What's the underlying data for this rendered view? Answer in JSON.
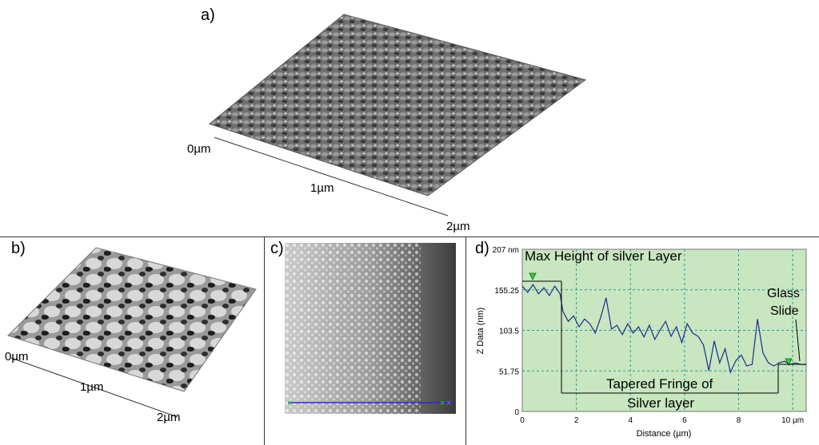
{
  "panels": {
    "a": {
      "label": "a)",
      "axis_ticks": [
        "0µm",
        "1µm",
        "2µm"
      ]
    },
    "b": {
      "label": "b)",
      "axis_ticks": [
        "0µm",
        "1µm",
        "2µm"
      ]
    },
    "c": {
      "label": "c)"
    },
    "d": {
      "label": "d)"
    }
  },
  "chart_data": {
    "type": "line",
    "title": "",
    "xlabel": "Distance (µm)",
    "ylabel": "Z Data (nm)",
    "xlim": [
      0,
      10.5
    ],
    "ylim": [
      0,
      207
    ],
    "x_ticks": [
      "0",
      "2",
      "4",
      "6",
      "8",
      "10 µm"
    ],
    "y_ticks": [
      "0",
      "51.75",
      "103.5",
      "155.25",
      "207 nm"
    ],
    "background_color": "#c8e6c0",
    "line_color": "#1f2a8c",
    "grid": "dashed",
    "annotations": {
      "max_height": "Max Height of silver Layer",
      "glass_line1": "Glass",
      "glass_line2": "Slide",
      "fringe_line1": "Tapered Fringe of",
      "fringe_line2": "Silver layer"
    },
    "series": [
      {
        "x": [
          0,
          0.2,
          0.4,
          0.6,
          0.8,
          1.0,
          1.2,
          1.4,
          1.5,
          1.7,
          1.9,
          2.1,
          2.3,
          2.5,
          2.7,
          2.9,
          3.1,
          3.3,
          3.5,
          3.7,
          3.9,
          4.1,
          4.3,
          4.5,
          4.7,
          4.9,
          5.1,
          5.3,
          5.5,
          5.7,
          5.9,
          6.1,
          6.3,
          6.5,
          6.7,
          6.9,
          7.1,
          7.3,
          7.5,
          7.7,
          7.9,
          8.1,
          8.3,
          8.5,
          8.7,
          8.9,
          9.1,
          9.3,
          9.5,
          9.7,
          9.9,
          10.1,
          10.3,
          10.5
        ],
        "y": [
          160,
          152,
          162,
          150,
          158,
          148,
          160,
          150,
          128,
          115,
          122,
          108,
          118,
          112,
          100,
          120,
          145,
          105,
          110,
          98,
          112,
          100,
          108,
          95,
          110,
          92,
          104,
          115,
          96,
          108,
          88,
          112,
          100,
          96,
          85,
          52,
          90,
          62,
          80,
          50,
          65,
          72,
          58,
          60,
          118,
          75,
          62,
          58,
          62,
          64,
          60,
          62,
          60,
          60
        ]
      }
    ]
  }
}
